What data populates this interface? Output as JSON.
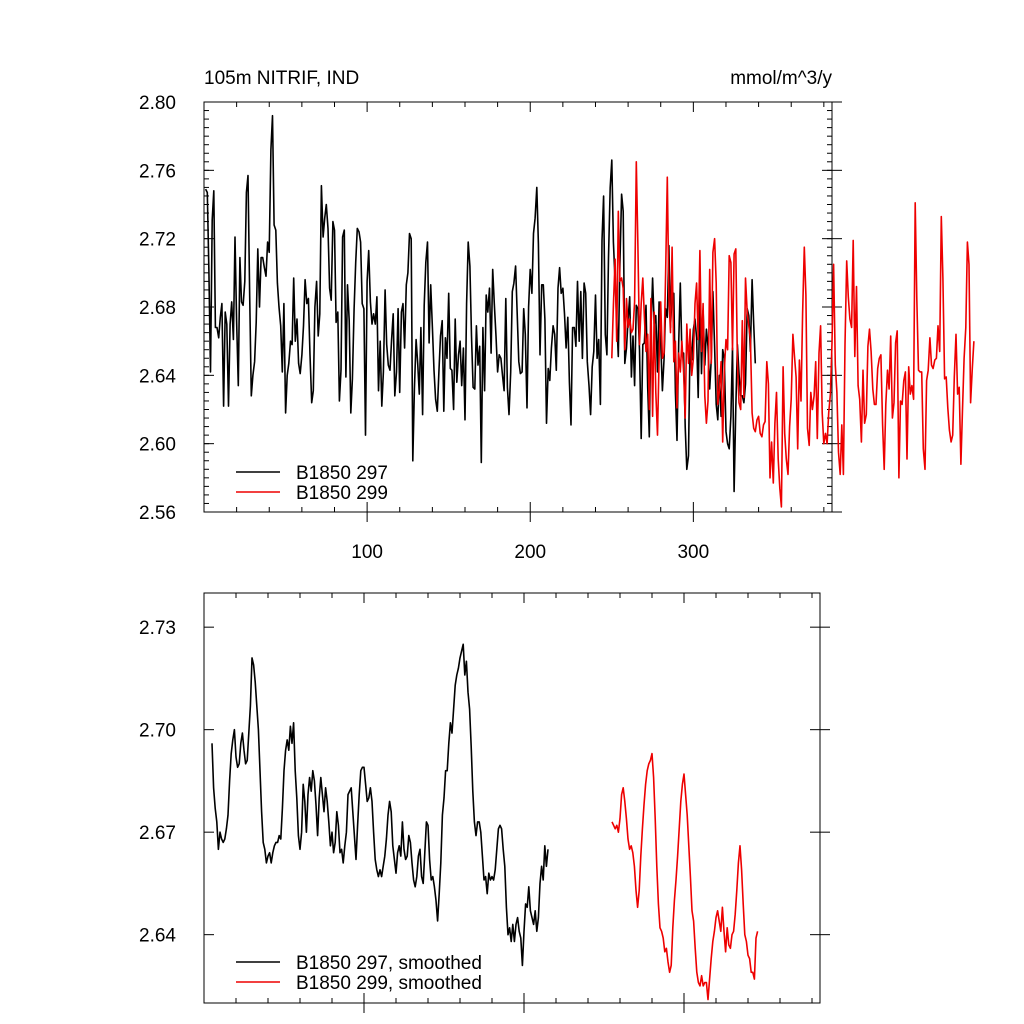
{
  "chart_data": [
    {
      "type": "line",
      "title_left": "105m NITRIF, IND",
      "title_right": "mmol/m^3/y",
      "xlim": [
        0,
        385
      ],
      "ylim": [
        2.56,
        2.8
      ],
      "xticks": [
        100,
        200,
        300
      ],
      "yticks": [
        "2.56",
        "2.60",
        "2.64",
        "2.68",
        "2.72",
        "2.76",
        "2.80"
      ],
      "legend_position": "bottom-left",
      "series": [
        {
          "name": "B1850 297",
          "color": "#000000",
          "x_start": 1,
          "values": [
            2.749,
            2.747,
            2.701,
            2.642,
            2.731,
            2.748,
            2.668,
            2.668,
            2.662,
            2.674,
            2.682,
            2.622,
            2.677,
            2.67,
            2.622,
            2.67,
            2.683,
            2.661,
            2.721,
            2.672,
            2.634,
            2.709,
            2.683,
            2.681,
            2.695,
            2.747,
            2.757,
            2.686,
            2.628,
            2.64,
            2.648,
            2.671,
            2.714,
            2.68,
            2.709,
            2.709,
            2.703,
            2.698,
            2.718,
            2.712,
            2.772,
            2.792,
            2.728,
            2.725,
            2.694,
            2.68,
            2.669,
            2.642,
            2.682,
            2.618,
            2.64,
            2.647,
            2.66,
            2.658,
            2.697,
            2.66,
            2.673,
            2.647,
            2.641,
            2.652,
            2.669,
            2.696,
            2.682,
            2.685,
            2.652,
            2.624,
            2.631,
            2.68,
            2.695,
            2.663,
            2.676,
            2.751,
            2.721,
            2.732,
            2.74,
            2.726,
            2.691,
            2.684,
            2.73,
            2.725,
            2.671,
            2.677,
            2.625,
            2.643,
            2.721,
            2.725,
            2.639,
            2.693,
            2.672,
            2.618,
            2.638,
            2.679,
            2.706,
            2.726,
            2.724,
            2.718,
            2.682,
            2.679,
            2.605,
            2.695,
            2.713,
            2.683,
            2.67,
            2.676,
            2.67,
            2.686,
            2.631,
            2.66,
            2.622,
            2.642,
            2.69,
            2.658,
            2.646,
            2.643,
            2.661,
            2.676,
            2.628,
            2.642,
            2.679,
            2.63,
            2.677,
            2.682,
            2.656,
            2.693,
            2.7,
            2.723,
            2.72,
            2.59,
            2.632,
            2.661,
            2.647,
            2.629,
            2.668,
            2.617,
            2.681,
            2.706,
            2.718,
            2.659,
            2.693,
            2.668,
            2.643,
            2.626,
            2.619,
            2.642,
            2.663,
            2.672,
            2.619,
            2.662,
            2.65,
            2.688,
            2.644,
            2.643,
            2.62,
            2.673,
            2.636,
            2.652,
            2.66,
            2.634,
            2.656,
            2.614,
            2.682,
            2.718,
            2.704,
            2.663,
            2.633,
            2.632,
            2.669,
            2.646,
            2.657,
            2.589,
            2.668,
            2.631,
            2.687,
            2.677,
            2.691,
            2.653,
            2.702,
            2.682,
            2.663,
            2.642,
            2.652,
            2.65,
            2.64,
            2.631,
            2.685,
            2.633,
            2.617,
            2.642,
            2.689,
            2.694,
            2.704,
            2.676,
            2.648,
            2.641,
            2.642,
            2.679,
            2.664,
            2.621,
            2.68,
            2.702,
            2.688,
            2.723,
            2.732,
            2.75,
            2.717,
            2.652,
            2.693,
            2.693,
            2.673,
            2.612,
            2.644,
            2.637,
            2.656,
            2.669,
            2.664,
            2.643,
            2.691,
            2.703,
            2.688,
            2.691,
            2.676,
            2.656,
            2.674,
            2.636,
            2.611,
            2.668,
            2.668,
            2.657,
            2.695,
            2.66,
            2.689,
            2.65,
            2.694,
            2.688,
            2.648,
            2.634,
            2.617,
            2.645,
            2.654,
            2.687,
            2.65,
            2.661,
            2.623,
            2.719,
            2.745,
            2.664,
            2.652,
            2.709,
            2.75,
            2.766,
            2.718,
            2.695,
            2.673,
            2.651,
            2.705,
            2.746,
            2.736,
            2.647,
            2.656,
            2.673,
            2.686,
            2.639,
            2.663,
            2.634,
            2.681,
            2.679,
            2.655,
            2.603,
            2.658,
            2.659,
            2.681,
            2.633,
            2.604,
            2.666,
            2.697,
            2.67,
            2.675,
            2.642,
            2.683,
            2.66,
            2.631,
            2.649,
            2.679,
            2.674,
            2.716,
            2.668,
            2.688,
            2.688,
            2.63,
            2.602,
            2.659,
            2.694,
            2.653,
            2.653,
            2.61,
            2.585,
            2.593,
            2.662,
            2.649,
            2.667,
            2.673,
            2.662,
            2.627,
            2.69,
            2.641,
            2.678,
            2.646,
            2.667,
            2.657,
            2.632,
            2.65,
            2.689,
            2.657,
            2.623,
            2.614,
            2.64,
            2.616,
            2.655,
            2.65,
            2.607,
            2.6,
            2.597,
            2.616,
            2.656,
            2.572,
            2.621,
            2.658,
            2.641,
            2.628,
            2.628,
            2.624,
            2.635,
            2.679,
            2.675,
            2.654,
            2.696,
            2.67,
            2.647
          ]
        },
        {
          "name": "B1850 299",
          "color": "#ee0000",
          "x_start": 250,
          "values": [
            2.65,
            2.681,
            2.708,
            2.66,
            2.736,
            2.695,
            2.697,
            2.691,
            2.655,
            2.685,
            2.668,
            2.673,
            2.665,
            2.667,
            2.683,
            2.765,
            2.716,
            2.658,
            2.682,
            2.697,
            2.674,
            2.654,
            2.664,
            2.62,
            2.685,
            2.616,
            2.677,
            2.63,
            2.605,
            2.65,
            2.683,
            2.65,
            2.653,
            2.699,
            2.756,
            2.686,
            2.665,
            2.715,
            2.648,
            2.66,
            2.621,
            2.653,
            2.642,
            2.66,
            2.642,
            2.615,
            2.67,
            2.647,
            2.667,
            2.64,
            2.65,
            2.682,
            2.694,
            2.661,
            2.713,
            2.654,
            2.682,
            2.628,
            2.612,
            2.625,
            2.702,
            2.647,
            2.712,
            2.72,
            2.694,
            2.623,
            2.631,
            2.648,
            2.601,
            2.643,
            2.661,
            2.655,
            2.71,
            2.706,
            2.655,
            2.711,
            2.714,
            2.648,
            2.624,
            2.62,
            2.672,
            2.627,
            2.697,
            2.677,
            2.669,
            2.661,
            2.618,
            2.609,
            2.607,
            2.614,
            2.616,
            2.606,
            2.604,
            2.611,
            2.613,
            2.648,
            2.635,
            2.58,
            2.601,
            2.577,
            2.612,
            2.63,
            2.591,
            2.574,
            2.563,
            2.645,
            2.606,
            2.591,
            2.582,
            2.61,
            2.626,
            2.664,
            2.651,
            2.639,
            2.597,
            2.649,
            2.625,
            2.676,
            2.715,
            2.687,
            2.609,
            2.599,
            2.63,
            2.62,
            2.628,
            2.648,
            2.603,
            2.653,
            2.669,
            2.618,
            2.6,
            2.606,
            2.6,
            2.618,
            2.629,
            2.659,
            2.705,
            2.646,
            2.63,
            2.595,
            2.582,
            2.611,
            2.582,
            2.658,
            2.707,
            2.686,
            2.673,
            2.668,
            2.719,
            2.651,
            2.692,
            2.634,
            2.626,
            2.601,
            2.643,
            2.612,
            2.617,
            2.657,
            2.667,
            2.654,
            2.632,
            2.623,
            2.623,
            2.644,
            2.65,
            2.652,
            2.611,
            2.585,
            2.623,
            2.643,
            2.632,
            2.663,
            2.615,
            2.624,
            2.659,
            2.666,
            2.58,
            2.625,
            2.623,
            2.637,
            2.642,
            2.591,
            2.645,
            2.629,
            2.634,
            2.626,
            2.741,
            2.685,
            2.643,
            2.642,
            2.642,
            2.597,
            2.585,
            2.637,
            2.643,
            2.662,
            2.646,
            2.644,
            2.649,
            2.65,
            2.669,
            2.654,
            2.733,
            2.697,
            2.638,
            2.639,
            2.621,
            2.608,
            2.601,
            2.605,
            2.639,
            2.664,
            2.629,
            2.633,
            2.588,
            2.62,
            2.65,
            2.668,
            2.718,
            2.705,
            2.624,
            2.644,
            2.66
          ]
        }
      ]
    },
    {
      "type": "line",
      "title_left": "",
      "title_right": "",
      "xlim": [
        0,
        385
      ],
      "ylim": [
        2.62,
        2.74
      ],
      "xticks": [
        100,
        200,
        300
      ],
      "yticks": [
        "2.64",
        "2.67",
        "2.70",
        "2.73"
      ],
      "legend_position": "bottom-left",
      "series": [
        {
          "name": "B1850 297, smoothed",
          "color": "#000000",
          "x_start": 5,
          "values": [
            2.696,
            2.683,
            2.677,
            2.673,
            2.665,
            2.67,
            2.668,
            2.667,
            2.668,
            2.671,
            2.675,
            2.685,
            2.693,
            2.697,
            2.7,
            2.692,
            2.689,
            2.69,
            2.696,
            2.699,
            2.694,
            2.69,
            2.691,
            2.699,
            2.707,
            2.721,
            2.719,
            2.714,
            2.707,
            2.7,
            2.688,
            2.676,
            2.667,
            2.665,
            2.661,
            2.663,
            2.664,
            2.661,
            2.664,
            2.666,
            2.667,
            2.667,
            2.669,
            2.668,
            2.677,
            2.688,
            2.694,
            2.697,
            2.694,
            2.701,
            2.696,
            2.702,
            2.688,
            2.68,
            2.669,
            2.665,
            2.67,
            2.684,
            2.679,
            2.67,
            2.681,
            2.686,
            2.682,
            2.688,
            2.685,
            2.678,
            2.669,
            2.68,
            2.686,
            2.681,
            2.676,
            2.683,
            2.679,
            2.673,
            2.666,
            2.67,
            2.664,
            2.667,
            2.676,
            2.672,
            2.664,
            2.665,
            2.661,
            2.666,
            2.67,
            2.681,
            2.682,
            2.683,
            2.676,
            2.669,
            2.662,
            2.672,
            2.681,
            2.688,
            2.689,
            2.689,
            2.684,
            2.679,
            2.68,
            2.683,
            2.679,
            2.67,
            2.662,
            2.659,
            2.657,
            2.659,
            2.657,
            2.66,
            2.663,
            2.668,
            2.675,
            2.679,
            2.676,
            2.666,
            2.662,
            2.658,
            2.664,
            2.666,
            2.663,
            2.673,
            2.665,
            2.662,
            2.663,
            2.669,
            2.667,
            2.661,
            2.656,
            2.654,
            2.657,
            2.663,
            2.665,
            2.657,
            2.655,
            2.664,
            2.673,
            2.672,
            2.662,
            2.656,
            2.657,
            2.654,
            2.65,
            2.644,
            2.652,
            2.661,
            2.675,
            2.68,
            2.688,
            2.688,
            2.696,
            2.702,
            2.699,
            2.706,
            2.713,
            2.716,
            2.718,
            2.721,
            2.723,
            2.725,
            2.716,
            2.72,
            2.711,
            2.706,
            2.695,
            2.682,
            2.673,
            2.669,
            2.673,
            2.673,
            2.67,
            2.663,
            2.656,
            2.657,
            2.652,
            2.658,
            2.656,
            2.657,
            2.656,
            2.659,
            2.665,
            2.671,
            2.672,
            2.671,
            2.665,
            2.66,
            2.648,
            2.64,
            2.642,
            2.638,
            2.643,
            2.638,
            2.643,
            2.645,
            2.641,
            2.639,
            2.631,
            2.641,
            2.649,
            2.648,
            2.654,
            2.647,
            2.645,
            2.643,
            2.647,
            2.641,
            2.645,
            2.655,
            2.66,
            2.656,
            2.666,
            2.66,
            2.665
          ]
        },
        {
          "name": "B1850 299, smoothed",
          "color": "#ee0000",
          "x_start": 255,
          "values": [
            2.673,
            2.672,
            2.671,
            2.672,
            2.67,
            2.674,
            2.681,
            2.683,
            2.679,
            2.674,
            2.668,
            2.665,
            2.666,
            2.664,
            2.66,
            2.653,
            2.648,
            2.653,
            2.663,
            2.671,
            2.678,
            2.684,
            2.688,
            2.69,
            2.691,
            2.693,
            2.686,
            2.674,
            2.66,
            2.649,
            2.642,
            2.641,
            2.639,
            2.635,
            2.636,
            2.632,
            2.629,
            2.631,
            2.642,
            2.65,
            2.656,
            2.663,
            2.671,
            2.679,
            2.684,
            2.687,
            2.681,
            2.675,
            2.666,
            2.657,
            2.647,
            2.644,
            2.636,
            2.629,
            2.626,
            2.625,
            2.628,
            2.625,
            2.626,
            2.626,
            2.621,
            2.627,
            2.633,
            2.638,
            2.641,
            2.645,
            2.647,
            2.644,
            2.641,
            2.648,
            2.641,
            2.635,
            2.642,
            2.637,
            2.636,
            2.64,
            2.641,
            2.646,
            2.653,
            2.661,
            2.666,
            2.659,
            2.649,
            2.64,
            2.638,
            2.634,
            2.633,
            2.629,
            2.629,
            2.627,
            2.639,
            2.641
          ]
        }
      ]
    }
  ]
}
